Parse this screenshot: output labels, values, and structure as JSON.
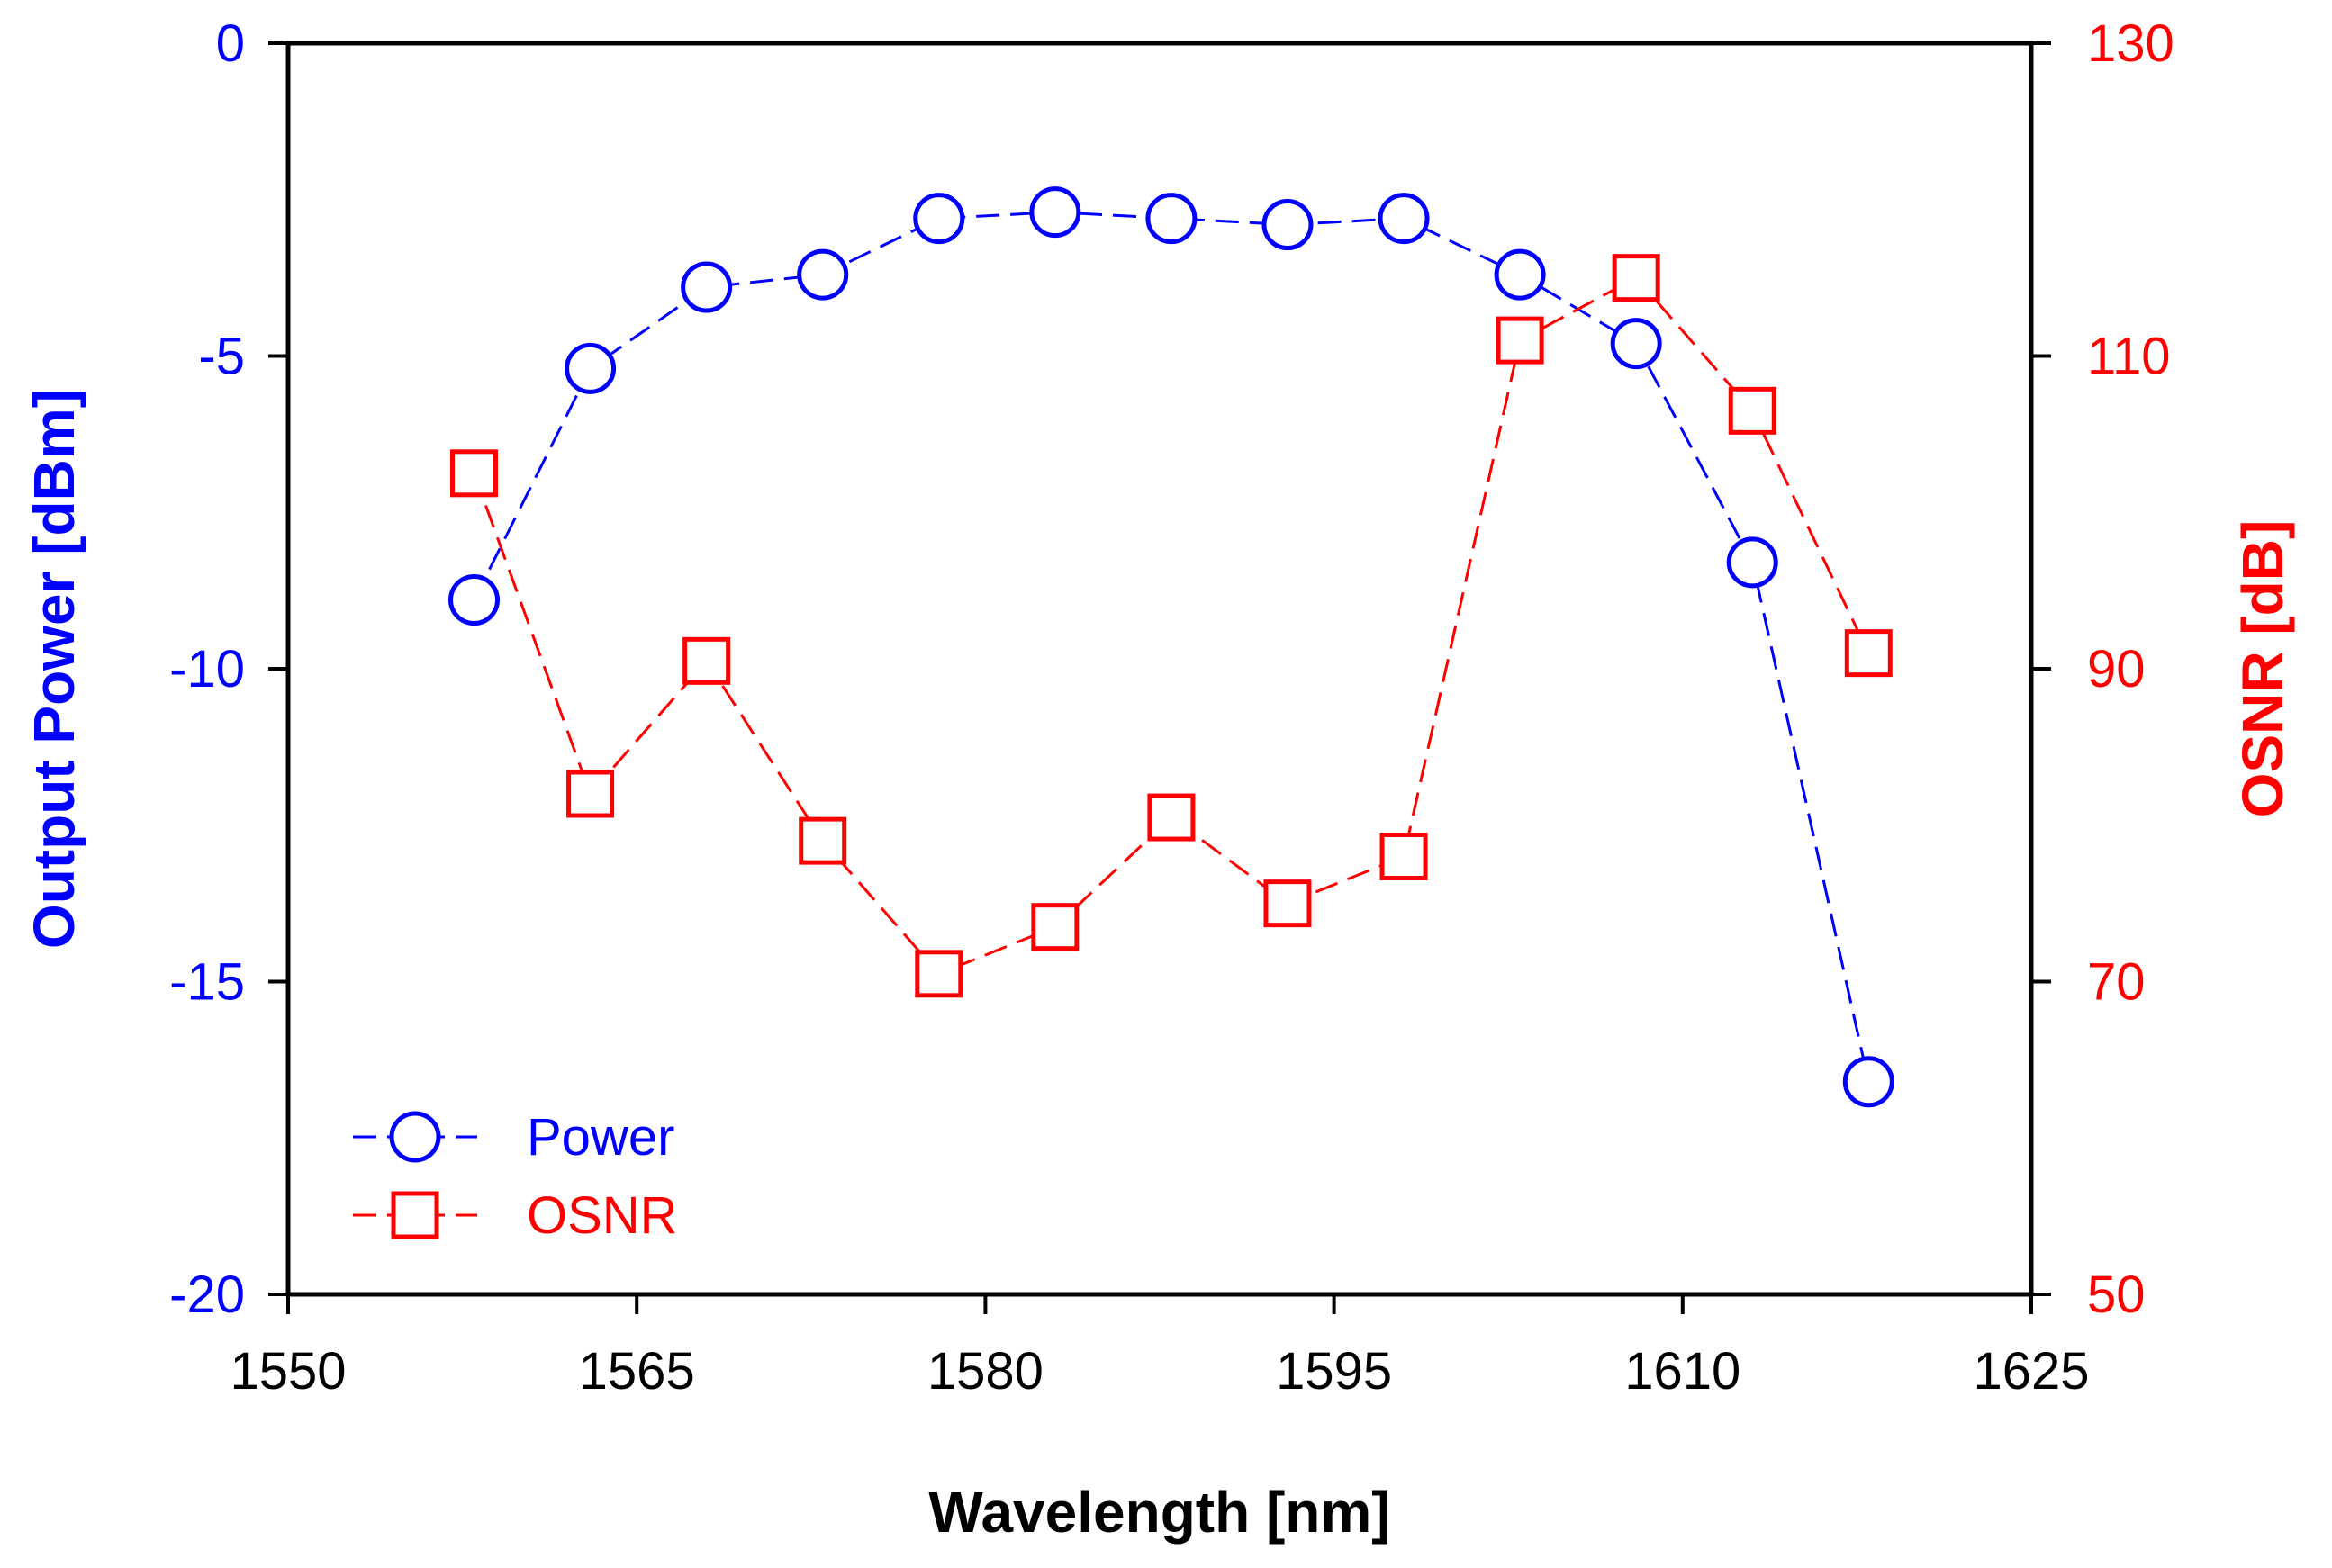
{
  "chart_data": {
    "type": "line",
    "title": "",
    "xlabel": "Wavelength [nm]",
    "ylabel_left": "Output Power [dBm]",
    "ylabel_right": "OSNR [dB]",
    "xlim": [
      1550,
      1625
    ],
    "ylim_left": [
      -20,
      0
    ],
    "ylim_right": [
      50,
      130
    ],
    "xticks": [
      1550,
      1565,
      1580,
      1595,
      1610,
      1625
    ],
    "yticks_left": [
      0,
      -5,
      -10,
      -15,
      -20
    ],
    "yticks_right": [
      130,
      110,
      90,
      70,
      50
    ],
    "xtick_labels": [
      "1550",
      "1565",
      "1580",
      "1595",
      "1610",
      "1625"
    ],
    "ytick_labels_left": [
      "0",
      "-5",
      "-10",
      "-15",
      "-20"
    ],
    "ytick_labels_right": [
      "130",
      "110",
      "90",
      "70",
      "50"
    ],
    "grid": false,
    "legend_position": "bottom-left",
    "series": [
      {
        "name": "Power",
        "axis": "left",
        "color": "#0000ff",
        "marker": "circle",
        "line": "dashed",
        "x": [
          1558,
          1563,
          1568,
          1573,
          1578,
          1583,
          1588,
          1593,
          1598,
          1603,
          1608,
          1613,
          1618
        ],
        "values": [
          -8.9,
          -5.2,
          -3.9,
          -3.7,
          -2.8,
          -2.7,
          -2.8,
          -2.9,
          -2.8,
          -3.7,
          -4.8,
          -8.3,
          -16.6
        ]
      },
      {
        "name": "OSNR",
        "axis": "right",
        "color": "#ff0000",
        "marker": "square",
        "line": "dashed",
        "x": [
          1558,
          1563,
          1568,
          1573,
          1578,
          1583,
          1588,
          1593,
          1598,
          1603,
          1608,
          1613,
          1618
        ],
        "values": [
          102.5,
          82,
          90.5,
          79,
          70.5,
          73.5,
          80.5,
          75,
          78,
          111,
          115,
          106.5,
          91
        ]
      }
    ]
  }
}
